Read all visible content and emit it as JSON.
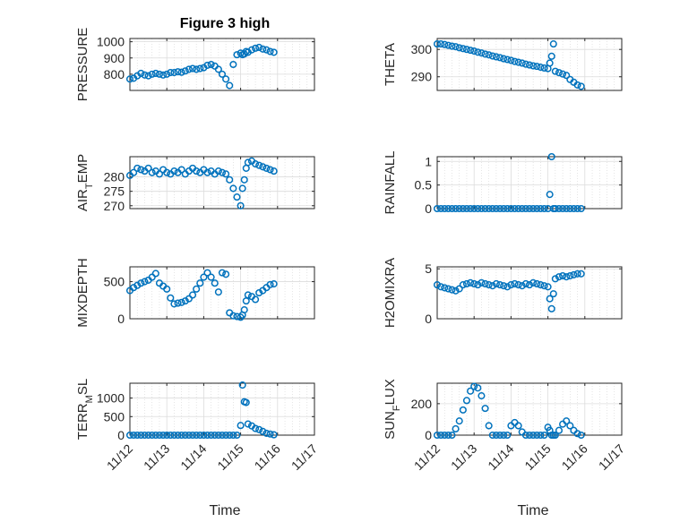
{
  "figure": {
    "title": "Figure 3 high",
    "xlabel": "Time",
    "xtick_labels": [
      "11/12",
      "11/13",
      "11/14",
      "11/15",
      "11/16",
      "11/17"
    ],
    "marker_color": "#0072BD",
    "grid": "on"
  },
  "chart_data": [
    {
      "type": "scatter",
      "name": "pressure",
      "ylabel": "PRESSURE",
      "xlim": [
        0,
        5
      ],
      "ylim": [
        700,
        1020
      ],
      "yticks": [
        800,
        900,
        1000
      ],
      "ytick_labels": [
        "800",
        "900",
        "1000"
      ],
      "x": [
        0.0,
        0.1,
        0.2,
        0.3,
        0.4,
        0.5,
        0.6,
        0.7,
        0.8,
        0.9,
        1.0,
        1.1,
        1.2,
        1.3,
        1.4,
        1.5,
        1.6,
        1.7,
        1.8,
        1.9,
        2.0,
        2.1,
        2.2,
        2.3,
        2.4,
        2.5,
        2.6,
        2.7,
        2.8,
        2.9,
        3.0,
        3.05,
        3.1,
        3.15,
        3.2,
        3.3,
        3.4,
        3.5,
        3.6,
        3.7,
        3.8,
        3.9
      ],
      "y": [
        770,
        775,
        790,
        805,
        795,
        790,
        800,
        805,
        800,
        795,
        800,
        810,
        810,
        815,
        812,
        820,
        830,
        835,
        830,
        835,
        840,
        855,
        860,
        850,
        830,
        800,
        770,
        730,
        860,
        920,
        930,
        920,
        925,
        940,
        935,
        950,
        960,
        965,
        955,
        950,
        940,
        935
      ]
    },
    {
      "type": "scatter",
      "name": "theta",
      "ylabel": "THETA",
      "xlim": [
        0,
        5
      ],
      "ylim": [
        285,
        304
      ],
      "yticks": [
        290,
        300
      ],
      "ytick_labels": [
        "290",
        "300"
      ],
      "x": [
        0.0,
        0.1,
        0.2,
        0.3,
        0.4,
        0.5,
        0.6,
        0.7,
        0.8,
        0.9,
        1.0,
        1.1,
        1.2,
        1.3,
        1.4,
        1.5,
        1.6,
        1.7,
        1.8,
        1.9,
        2.0,
        2.1,
        2.2,
        2.3,
        2.4,
        2.5,
        2.6,
        2.7,
        2.8,
        2.9,
        3.0,
        3.05,
        3.1,
        3.15,
        3.2,
        3.3,
        3.4,
        3.5,
        3.6,
        3.7,
        3.8,
        3.9
      ],
      "y": [
        302,
        302,
        301.8,
        301.5,
        301.2,
        301,
        300.6,
        300.3,
        300,
        299.7,
        299.4,
        299,
        298.7,
        298.3,
        298,
        297.6,
        297.3,
        297,
        296.6,
        296.3,
        296,
        295.6,
        295.3,
        295,
        294.6,
        294.3,
        294,
        293.8,
        293.5,
        293.2,
        293,
        295,
        297.5,
        302,
        292,
        291.5,
        291,
        290.5,
        289,
        288,
        287,
        286.5
      ]
    },
    {
      "type": "scatter",
      "name": "air_temp",
      "ylabel": "AIR_TEMP",
      "xlim": [
        0,
        5
      ],
      "ylim": [
        269,
        287
      ],
      "yticks": [
        270,
        275,
        280
      ],
      "ytick_labels": [
        "270",
        "275",
        "280"
      ],
      "x": [
        0.0,
        0.1,
        0.2,
        0.3,
        0.4,
        0.5,
        0.6,
        0.7,
        0.8,
        0.9,
        1.0,
        1.1,
        1.2,
        1.3,
        1.4,
        1.5,
        1.6,
        1.7,
        1.8,
        1.9,
        2.0,
        2.1,
        2.2,
        2.3,
        2.4,
        2.5,
        2.6,
        2.7,
        2.8,
        2.9,
        3.0,
        3.05,
        3.1,
        3.15,
        3.2,
        3.3,
        3.4,
        3.5,
        3.6,
        3.7,
        3.8,
        3.9
      ],
      "y": [
        280.5,
        281.5,
        283,
        282.5,
        282,
        283,
        281.5,
        282,
        281,
        282.5,
        281.5,
        281,
        282,
        281.5,
        282.5,
        281,
        282,
        283,
        282,
        281.5,
        282.5,
        281.5,
        282,
        281,
        282,
        281.5,
        281,
        279,
        276,
        273,
        270,
        276,
        279,
        283,
        285,
        285.5,
        284.5,
        284,
        283.5,
        283,
        282.5,
        282
      ]
    },
    {
      "type": "scatter",
      "name": "rainfall",
      "ylabel": "RAINFALL",
      "xlim": [
        0,
        5
      ],
      "ylim": [
        0,
        1.1
      ],
      "yticks": [
        0,
        0.5,
        1
      ],
      "ytick_labels": [
        "0",
        "0.5",
        "1"
      ],
      "x": [
        0.0,
        0.1,
        0.2,
        0.3,
        0.4,
        0.5,
        0.6,
        0.7,
        0.8,
        0.9,
        1.0,
        1.1,
        1.2,
        1.3,
        1.4,
        1.5,
        1.6,
        1.7,
        1.8,
        1.9,
        2.0,
        2.1,
        2.2,
        2.3,
        2.4,
        2.5,
        2.6,
        2.7,
        2.8,
        2.9,
        3.0,
        3.05,
        3.1,
        3.15,
        3.2,
        3.3,
        3.4,
        3.5,
        3.6,
        3.7,
        3.8,
        3.9
      ],
      "y": [
        0,
        0,
        0,
        0,
        0,
        0,
        0,
        0,
        0,
        0,
        0,
        0,
        0,
        0,
        0,
        0,
        0,
        0,
        0,
        0,
        0,
        0,
        0,
        0,
        0,
        0,
        0,
        0,
        0,
        0,
        0,
        0.3,
        1.1,
        0,
        0,
        0,
        0,
        0,
        0,
        0,
        0,
        0
      ]
    },
    {
      "type": "scatter",
      "name": "mixdepth",
      "ylabel": "MIXDEPTH",
      "xlim": [
        0,
        5
      ],
      "ylim": [
        0,
        700
      ],
      "yticks": [
        0,
        500
      ],
      "ytick_labels": [
        "0",
        "500"
      ],
      "x": [
        0.0,
        0.1,
        0.2,
        0.3,
        0.4,
        0.5,
        0.6,
        0.7,
        0.8,
        0.9,
        1.0,
        1.1,
        1.2,
        1.3,
        1.4,
        1.5,
        1.6,
        1.7,
        1.8,
        1.9,
        2.0,
        2.1,
        2.2,
        2.3,
        2.4,
        2.5,
        2.6,
        2.7,
        2.8,
        2.9,
        3.0,
        3.05,
        3.1,
        3.15,
        3.2,
        3.3,
        3.4,
        3.5,
        3.6,
        3.7,
        3.8,
        3.9
      ],
      "y": [
        380,
        420,
        450,
        480,
        500,
        520,
        560,
        610,
        480,
        440,
        400,
        280,
        200,
        210,
        220,
        240,
        270,
        320,
        400,
        480,
        560,
        620,
        560,
        480,
        360,
        620,
        600,
        80,
        40,
        30,
        20,
        50,
        120,
        240,
        320,
        300,
        260,
        350,
        380,
        420,
        460,
        470
      ]
    },
    {
      "type": "scatter",
      "name": "h2omixra",
      "ylabel": "H2OMIXRA",
      "xlim": [
        0,
        5
      ],
      "ylim": [
        0,
        5.2
      ],
      "yticks": [
        0,
        5
      ],
      "ytick_labels": [
        "0",
        "5"
      ],
      "x": [
        0.0,
        0.1,
        0.2,
        0.3,
        0.4,
        0.5,
        0.6,
        0.7,
        0.8,
        0.9,
        1.0,
        1.1,
        1.2,
        1.3,
        1.4,
        1.5,
        1.6,
        1.7,
        1.8,
        1.9,
        2.0,
        2.1,
        2.2,
        2.3,
        2.4,
        2.5,
        2.6,
        2.7,
        2.8,
        2.9,
        3.0,
        3.05,
        3.1,
        3.15,
        3.2,
        3.3,
        3.4,
        3.5,
        3.6,
        3.7,
        3.8,
        3.9
      ],
      "y": [
        3.4,
        3.2,
        3.1,
        3,
        2.9,
        2.8,
        3,
        3.4,
        3.5,
        3.6,
        3.5,
        3.4,
        3.6,
        3.5,
        3.4,
        3.3,
        3.5,
        3.4,
        3.3,
        3.2,
        3.4,
        3.5,
        3.4,
        3.3,
        3.5,
        3.4,
        3.6,
        3.5,
        3.4,
        3.3,
        3.2,
        2,
        1,
        2.5,
        4,
        4.2,
        4.3,
        4.2,
        4.3,
        4.4,
        4.5,
        4.5
      ]
    },
    {
      "type": "scatter",
      "name": "terr_msl",
      "ylabel": "TERR_MSL",
      "xlim": [
        0,
        5
      ],
      "ylim": [
        0,
        1400
      ],
      "yticks": [
        0,
        500,
        1000
      ],
      "ytick_labels": [
        "0",
        "500",
        "1000"
      ],
      "x": [
        0.0,
        0.1,
        0.2,
        0.3,
        0.4,
        0.5,
        0.6,
        0.7,
        0.8,
        0.9,
        1.0,
        1.1,
        1.2,
        1.3,
        1.4,
        1.5,
        1.6,
        1.7,
        1.8,
        1.9,
        2.0,
        2.1,
        2.2,
        2.3,
        2.4,
        2.5,
        2.6,
        2.7,
        2.8,
        2.9,
        3.0,
        3.05,
        3.1,
        3.15,
        3.2,
        3.3,
        3.4,
        3.5,
        3.6,
        3.7,
        3.8,
        3.9
      ],
      "y": [
        0,
        0,
        0,
        0,
        0,
        0,
        0,
        0,
        0,
        0,
        0,
        0,
        0,
        0,
        0,
        0,
        0,
        0,
        0,
        0,
        0,
        0,
        0,
        0,
        0,
        0,
        0,
        0,
        0,
        0,
        260,
        1350,
        900,
        880,
        300,
        250,
        180,
        150,
        100,
        50,
        30,
        10
      ]
    },
    {
      "type": "scatter",
      "name": "sun_flux",
      "ylabel": "SUN_FLUX",
      "xlim": [
        0,
        5
      ],
      "ylim": [
        0,
        330
      ],
      "yticks": [
        0,
        200
      ],
      "ytick_labels": [
        "0",
        "200"
      ],
      "x": [
        0.0,
        0.1,
        0.2,
        0.3,
        0.4,
        0.5,
        0.6,
        0.7,
        0.8,
        0.9,
        1.0,
        1.1,
        1.2,
        1.3,
        1.4,
        1.5,
        1.6,
        1.7,
        1.8,
        1.9,
        2.0,
        2.1,
        2.2,
        2.3,
        2.4,
        2.5,
        2.6,
        2.7,
        2.8,
        2.9,
        3.0,
        3.05,
        3.1,
        3.15,
        3.2,
        3.3,
        3.4,
        3.5,
        3.6,
        3.7,
        3.8,
        3.9
      ],
      "y": [
        0,
        0,
        0,
        0,
        0,
        40,
        90,
        160,
        220,
        280,
        310,
        300,
        250,
        170,
        60,
        0,
        0,
        0,
        0,
        0,
        60,
        80,
        60,
        20,
        0,
        0,
        0,
        0,
        0,
        0,
        50,
        30,
        0,
        0,
        0,
        30,
        70,
        90,
        60,
        30,
        10,
        0
      ]
    }
  ]
}
